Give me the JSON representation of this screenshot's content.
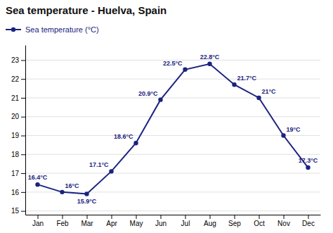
{
  "chart_data": {
    "type": "line",
    "title": "Sea temperature - Huelva, Spain",
    "categories": [
      "Jan",
      "Feb",
      "Mar",
      "Apr",
      "May",
      "Jun",
      "Jul",
      "Aug",
      "Sep",
      "Oct",
      "Nov",
      "Dec"
    ],
    "series": [
      {
        "name": "Sea temperature (°C)",
        "color": "#1a237e",
        "marker": "circle",
        "line_style": "solid",
        "values": [
          16.4,
          16.0,
          15.9,
          17.1,
          18.6,
          20.9,
          22.5,
          22.8,
          21.7,
          21.0,
          19.0,
          17.3
        ],
        "value_labels": [
          "16.4°C",
          "16°C",
          "15.9°C",
          "17.1°C",
          "18.6°C",
          "20.9°C",
          "22.5°C",
          "22.8°C",
          "21.7°C",
          "21°C",
          "19°C",
          "17.3°C"
        ]
      }
    ],
    "ylim": [
      14.8,
      23.8
    ],
    "yticks": [
      15,
      16,
      17,
      18,
      19,
      20,
      21,
      22,
      23
    ],
    "grid": true,
    "legend": "upper-left",
    "data_labels": true
  }
}
